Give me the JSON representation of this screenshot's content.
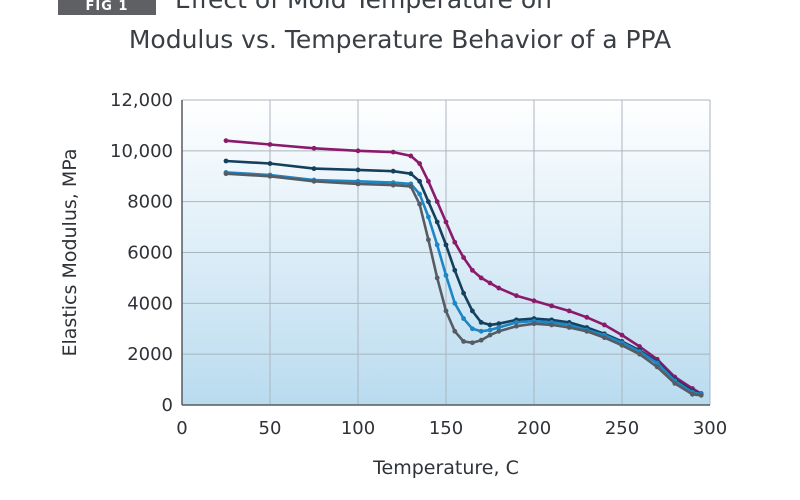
{
  "figure": {
    "badge": "FIG 1"
  },
  "chart_data": {
    "type": "line",
    "title_line1": "Effect of Mold Temperature on",
    "title_line2": "Modulus vs. Temperature Behavior of a PPA",
    "xlabel": "Temperature, C",
    "ylabel": "Elastics Modulus, MPa",
    "xlim": [
      0,
      300
    ],
    "ylim": [
      0,
      12000
    ],
    "xticks": [
      0,
      50,
      100,
      150,
      200,
      250,
      300
    ],
    "xtick_labels": [
      "0",
      "50",
      "100",
      "150",
      "200",
      "250",
      "300"
    ],
    "yticks": [
      0,
      2000,
      4000,
      6000,
      8000,
      10000,
      12000
    ],
    "ytick_labels": [
      "0",
      "2000",
      "4000",
      "6000",
      "8000",
      "10,000",
      "12,000"
    ],
    "grid": true,
    "series": [
      {
        "color": "#8b1a6b",
        "x": [
          25,
          50,
          75,
          100,
          120,
          130,
          135,
          140,
          145,
          150,
          155,
          160,
          165,
          170,
          175,
          180,
          190,
          200,
          210,
          220,
          230,
          240,
          250,
          260,
          270,
          280,
          290,
          295
        ],
        "y": [
          10400,
          10250,
          10100,
          10000,
          9950,
          9800,
          9500,
          8800,
          8000,
          7200,
          6400,
          5800,
          5300,
          5000,
          4800,
          4600,
          4300,
          4100,
          3900,
          3700,
          3450,
          3150,
          2750,
          2300,
          1800,
          1100,
          650,
          450
        ]
      },
      {
        "color": "#14405e",
        "x": [
          25,
          50,
          75,
          100,
          120,
          130,
          135,
          140,
          145,
          150,
          155,
          160,
          165,
          170,
          175,
          180,
          190,
          200,
          210,
          220,
          230,
          240,
          250,
          260,
          270,
          280,
          290,
          295
        ],
        "y": [
          9600,
          9500,
          9300,
          9250,
          9200,
          9100,
          8800,
          8000,
          7200,
          6300,
          5300,
          4400,
          3700,
          3250,
          3150,
          3200,
          3350,
          3400,
          3350,
          3250,
          3050,
          2800,
          2500,
          2150,
          1700,
          1000,
          550,
          420
        ]
      },
      {
        "color": "#1d86c4",
        "x": [
          25,
          50,
          75,
          100,
          120,
          130,
          135,
          140,
          145,
          150,
          155,
          160,
          165,
          170,
          175,
          180,
          190,
          200,
          210,
          220,
          230,
          240,
          250,
          260,
          270,
          280,
          290,
          295
        ],
        "y": [
          9150,
          9050,
          8850,
          8800,
          8750,
          8700,
          8300,
          7400,
          6300,
          5100,
          4000,
          3400,
          3000,
          2900,
          2950,
          3050,
          3250,
          3300,
          3250,
          3150,
          2950,
          2750,
          2450,
          2100,
          1650,
          950,
          500,
          420
        ]
      },
      {
        "color": "#575c63",
        "x": [
          25,
          50,
          75,
          100,
          120,
          130,
          135,
          140,
          145,
          150,
          155,
          160,
          165,
          170,
          175,
          180,
          190,
          200,
          210,
          220,
          230,
          240,
          250,
          260,
          270,
          280,
          290,
          295
        ],
        "y": [
          9100,
          9000,
          8800,
          8700,
          8650,
          8600,
          7900,
          6500,
          5000,
          3700,
          2900,
          2500,
          2450,
          2550,
          2750,
          2900,
          3100,
          3200,
          3150,
          3050,
          2900,
          2650,
          2350,
          2000,
          1500,
          850,
          420,
          380
        ]
      }
    ]
  }
}
